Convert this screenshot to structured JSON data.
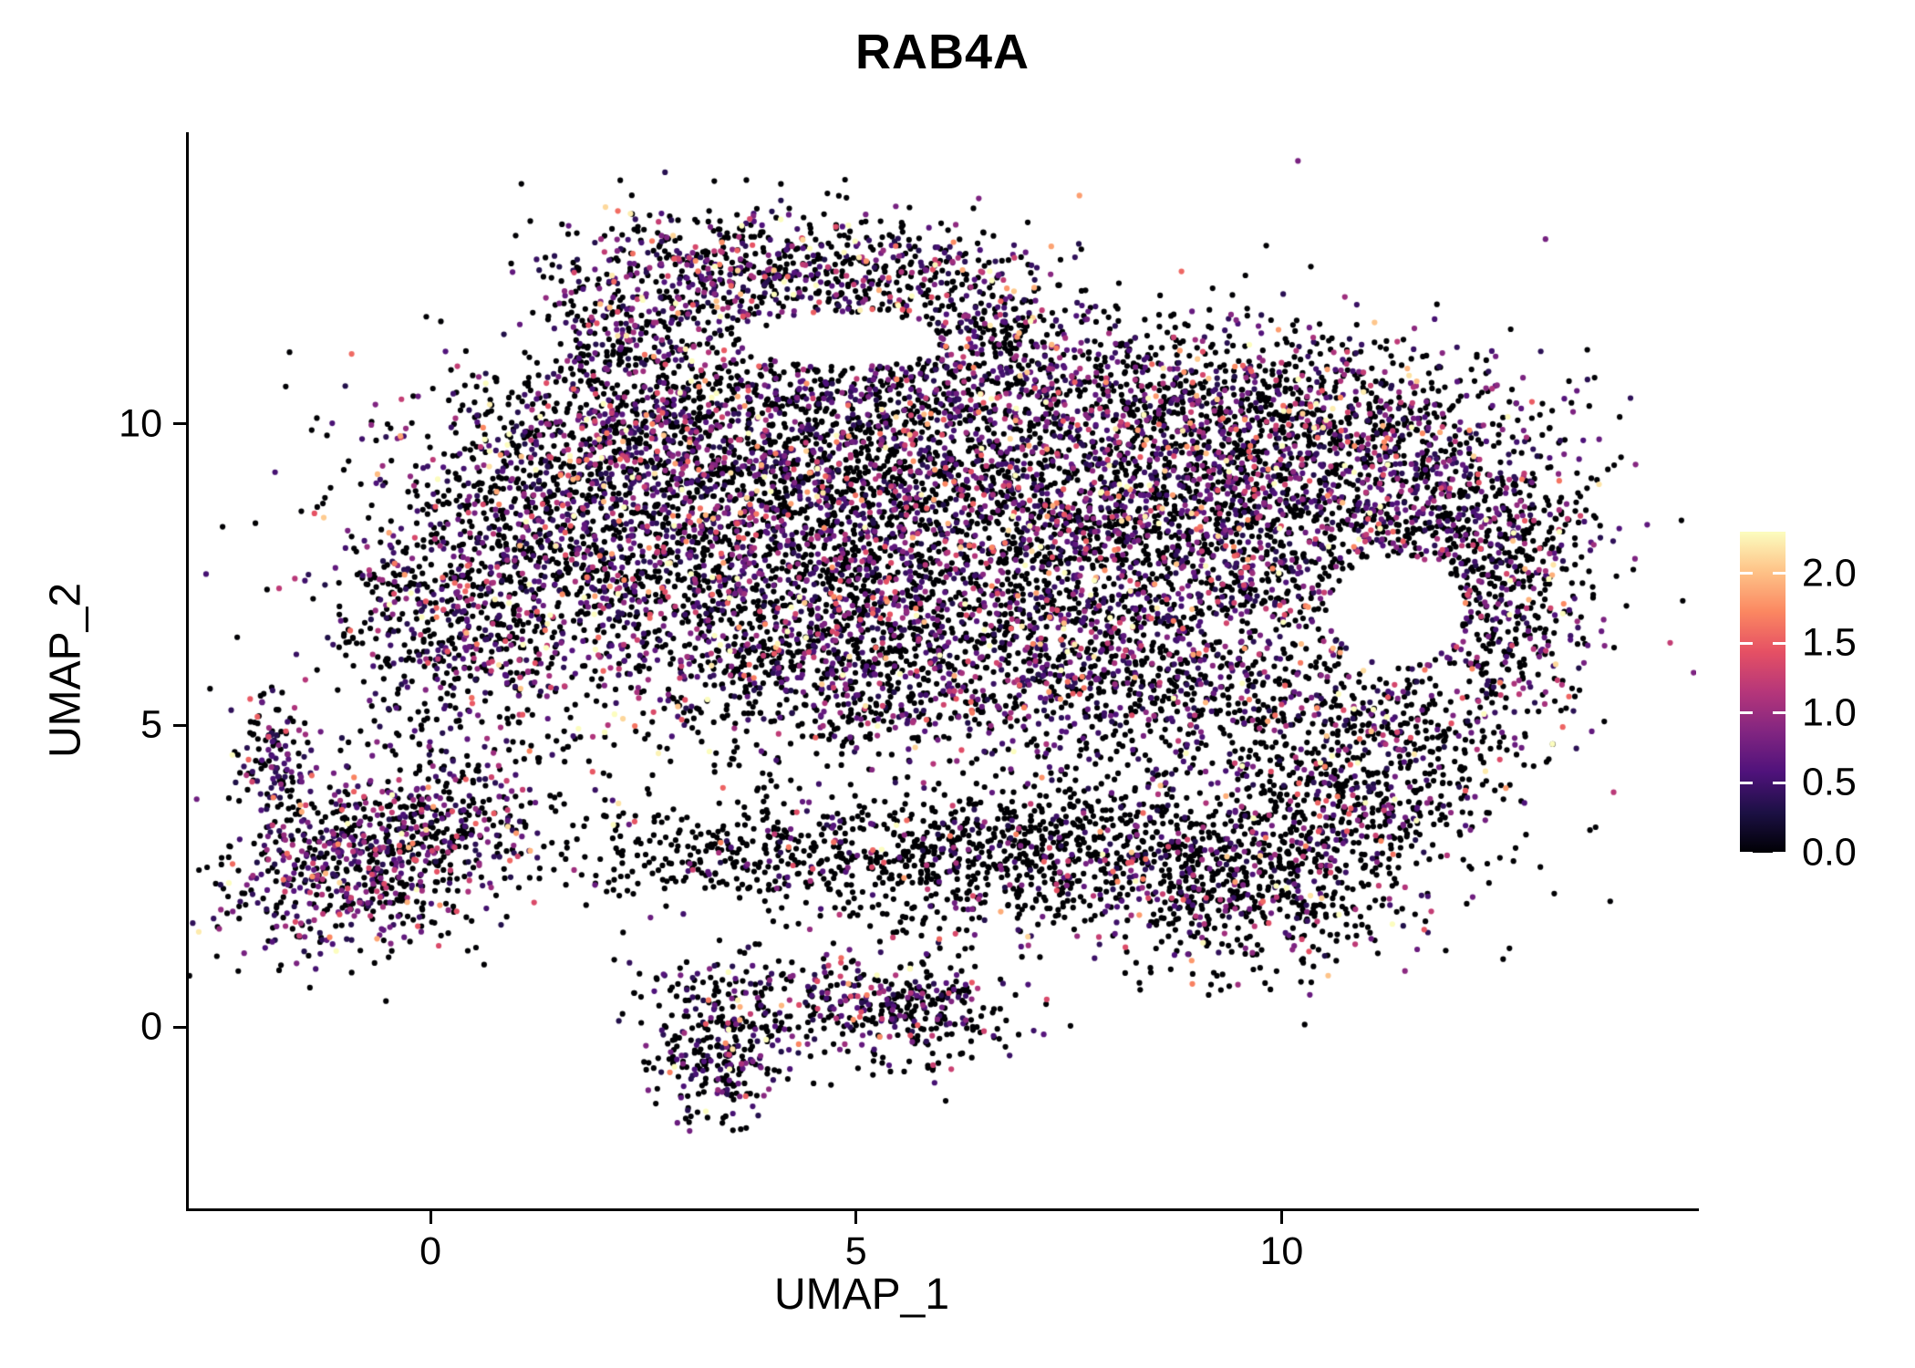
{
  "chart_data": {
    "type": "scatter",
    "title": "RAB4A",
    "xlabel": "UMAP_1",
    "ylabel": "UMAP_2",
    "x_ticks": [
      0,
      5,
      10
    ],
    "x_tick_labels": [
      "0",
      "5",
      "10"
    ],
    "y_ticks": [
      0,
      5,
      10
    ],
    "y_tick_labels": [
      "0",
      "5",
      "10"
    ],
    "x_range": [
      -2.84,
      14.87
    ],
    "y_range": [
      -3.01,
      14.84
    ],
    "grid": false,
    "legend_position": "right",
    "point_radius_px": 3.1,
    "seed": 42,
    "style": {
      "background": "#ffffff",
      "axis_color": "#000000",
      "text_color": "#000000",
      "colorbar_tick_color": "#ffffff"
    },
    "colorbar": {
      "domain": [
        0.0,
        2.3
      ],
      "ticks": [
        2.0,
        1.5,
        1.0,
        0.5,
        0.0
      ],
      "tick_labels": [
        "2.0",
        "1.5",
        "1.0",
        "0.5",
        "0.0"
      ]
    },
    "colormap": {
      "name": "magma",
      "stops": [
        {
          "t": 0.0,
          "rgb": [
            0,
            0,
            4
          ]
        },
        {
          "t": 0.125,
          "rgb": [
            28,
            16,
            68
          ]
        },
        {
          "t": 0.25,
          "rgb": [
            79,
            18,
            123
          ]
        },
        {
          "t": 0.375,
          "rgb": [
            129,
            37,
            129
          ]
        },
        {
          "t": 0.5,
          "rgb": [
            181,
            54,
            122
          ]
        },
        {
          "t": 0.625,
          "rgb": [
            229,
            80,
            100
          ]
        },
        {
          "t": 0.75,
          "rgb": [
            251,
            135,
            97
          ]
        },
        {
          "t": 0.875,
          "rgb": [
            254,
            194,
            135
          ]
        },
        {
          "t": 1.0,
          "rgb": [
            252,
            253,
            191
          ]
        }
      ]
    },
    "holes": [
      {
        "cx": 11.35,
        "cy": 6.9,
        "rx": 0.8,
        "ry": 0.9
      },
      {
        "cx": 4.9,
        "cy": 11.4,
        "rx": 1.1,
        "ry": 0.45
      }
    ],
    "clusters": [
      {
        "name": "main-blob-left",
        "cx": 1.2,
        "cy": 7.8,
        "sx": 1.1,
        "sy": 1.4,
        "n": 1000,
        "pf": 0.42
      },
      {
        "name": "main-blob-midleft",
        "cx": 3.3,
        "cy": 8.6,
        "sx": 1.3,
        "sy": 1.3,
        "n": 1400,
        "pf": 0.42
      },
      {
        "name": "main-blob-center",
        "cx": 5.5,
        "cy": 8.4,
        "sx": 1.3,
        "sy": 1.5,
        "n": 1400,
        "pf": 0.42
      },
      {
        "name": "main-blob-midright",
        "cx": 7.8,
        "cy": 8.3,
        "sx": 1.3,
        "sy": 1.5,
        "n": 1400,
        "pf": 0.42
      },
      {
        "name": "main-blob-right",
        "cx": 10.0,
        "cy": 8.6,
        "sx": 1.2,
        "sy": 1.2,
        "n": 1200,
        "pf": 0.42
      },
      {
        "name": "right-lobe-upper",
        "cx": 12.0,
        "cy": 8.4,
        "sx": 0.9,
        "sy": 1.0,
        "n": 650,
        "pf": 0.42
      },
      {
        "name": "right-lobe-lower",
        "cx": 12.7,
        "cy": 6.8,
        "sx": 0.55,
        "sy": 0.9,
        "n": 300,
        "pf": 0.4
      },
      {
        "name": "top-right-bump",
        "cx": 10.6,
        "cy": 10.2,
        "sx": 1.2,
        "sy": 0.7,
        "n": 420,
        "pf": 0.42
      },
      {
        "name": "top-mid-bump",
        "cx": 8.3,
        "cy": 10.6,
        "sx": 1.2,
        "sy": 0.6,
        "n": 420,
        "pf": 0.42
      },
      {
        "name": "top-center-bump",
        "cx": 5.0,
        "cy": 10.4,
        "sx": 1.3,
        "sy": 0.6,
        "n": 420,
        "pf": 0.42
      },
      {
        "name": "top-left-bump",
        "cx": 2.2,
        "cy": 9.9,
        "sx": 0.9,
        "sy": 0.6,
        "n": 350,
        "pf": 0.42
      },
      {
        "name": "left-lower-lobe",
        "cx": 0.1,
        "cy": 6.6,
        "sx": 0.7,
        "sy": 0.9,
        "n": 300,
        "pf": 0.42
      },
      {
        "name": "blob-underside-left",
        "cx": 4.3,
        "cy": 6.1,
        "sx": 1.2,
        "sy": 0.9,
        "n": 600,
        "pf": 0.4
      },
      {
        "name": "blob-underside-mid",
        "cx": 6.5,
        "cy": 5.9,
        "sx": 1.2,
        "sy": 0.8,
        "n": 420,
        "pf": 0.35
      },
      {
        "name": "blob-underside-right",
        "cx": 9.0,
        "cy": 5.6,
        "sx": 1.2,
        "sy": 0.8,
        "n": 500,
        "pf": 0.35
      },
      {
        "name": "lower-right-lobe",
        "cx": 11.2,
        "cy": 4.9,
        "sx": 0.9,
        "sy": 0.6,
        "n": 350,
        "pf": 0.35
      },
      {
        "name": "top-arc-left",
        "cx": 3.1,
        "cy": 12.5,
        "sx": 0.9,
        "sy": 0.6,
        "n": 400,
        "pf": 0.45,
        "em": 0.62
      },
      {
        "name": "top-arc-right",
        "cx": 5.0,
        "cy": 12.45,
        "sx": 1.0,
        "sy": 0.5,
        "n": 400,
        "pf": 0.45,
        "em": 0.62
      },
      {
        "name": "top-arc-join-right",
        "cx": 6.4,
        "cy": 11.7,
        "sx": 0.6,
        "sy": 0.6,
        "n": 220,
        "pf": 0.45
      },
      {
        "name": "top-arc-join-left",
        "cx": 2.35,
        "cy": 11.4,
        "sx": 0.5,
        "sy": 0.5,
        "n": 180,
        "pf": 0.45
      },
      {
        "name": "left-island",
        "cx": -0.6,
        "cy": 2.9,
        "sx": 0.95,
        "sy": 0.85,
        "rho": 0.35,
        "n": 950,
        "pf": 0.45
      },
      {
        "name": "left-island-spur",
        "cx": -1.85,
        "cy": 4.5,
        "sx": 0.22,
        "sy": 0.55,
        "n": 120,
        "pf": 0.45
      },
      {
        "name": "bottom-band-left",
        "cx": 3.6,
        "cy": 2.9,
        "sx": 1.1,
        "sy": 0.5,
        "n": 300,
        "pf": 0.15,
        "em": 0.5
      },
      {
        "name": "bottom-band-mid",
        "cx": 5.8,
        "cy": 2.7,
        "sx": 1.0,
        "sy": 0.55,
        "n": 400,
        "pf": 0.15,
        "em": 0.5
      },
      {
        "name": "bottom-band-right",
        "cx": 7.3,
        "cy": 3.1,
        "sx": 0.8,
        "sy": 0.55,
        "n": 280,
        "pf": 0.18,
        "em": 0.5
      },
      {
        "name": "lower-right-island",
        "cx": 9.4,
        "cy": 2.6,
        "sx": 1.2,
        "sy": 0.85,
        "n": 950,
        "pf": 0.28,
        "em": 0.6
      },
      {
        "name": "lower-right-bridge",
        "cx": 10.9,
        "cy": 3.7,
        "sx": 0.7,
        "sy": 0.6,
        "n": 280,
        "pf": 0.3,
        "em": 0.6
      },
      {
        "name": "bottom-island",
        "cx": 4.6,
        "cy": 0.35,
        "sx": 1.0,
        "sy": 0.5,
        "n": 350,
        "pf": 0.4
      },
      {
        "name": "bottom-island-knot",
        "cx": 3.35,
        "cy": -0.55,
        "sx": 0.35,
        "sy": 0.55,
        "n": 230,
        "pf": 0.4
      },
      {
        "name": "bottom-island-right",
        "cx": 5.9,
        "cy": 0.3,
        "sx": 0.5,
        "sy": 0.45,
        "n": 170,
        "pf": 0.4
      },
      {
        "name": "background-scatter",
        "cx": 6.2,
        "cy": 7.2,
        "sx": 4.3,
        "sy": 2.6,
        "n": 350,
        "pf": 0.3
      }
    ]
  }
}
